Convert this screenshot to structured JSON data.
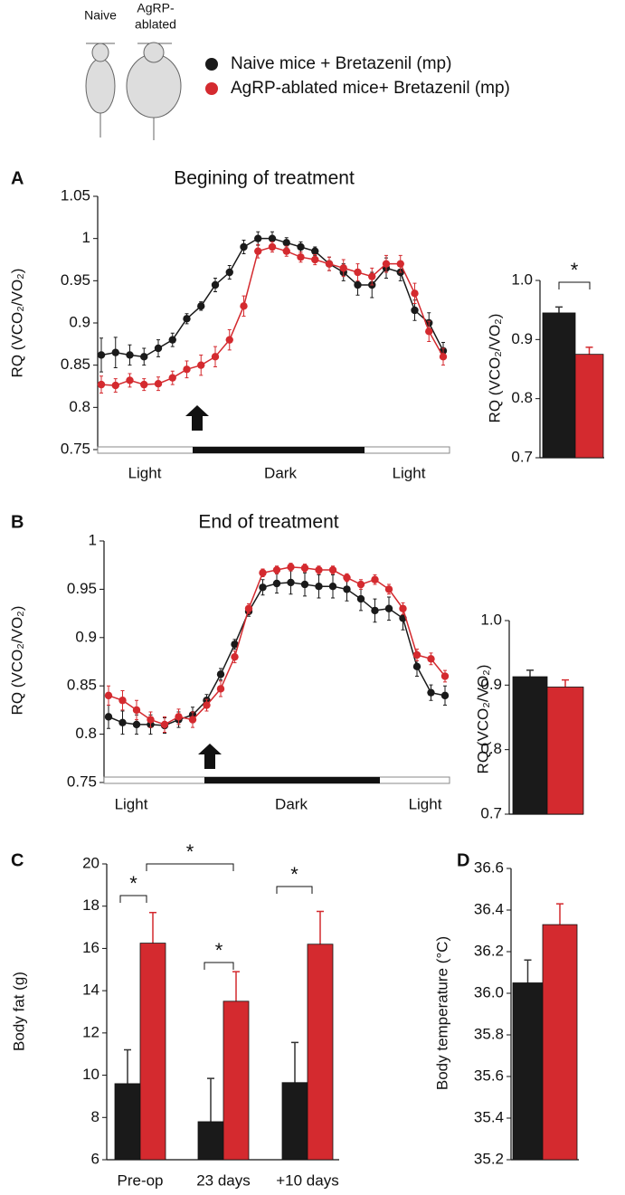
{
  "header": {
    "naive_label": "Naive",
    "ablated_label": [
      "AgRP-",
      "ablated"
    ]
  },
  "chart_data": [
    {
      "type": "line",
      "panel": "A",
      "title": "Begining of treatment",
      "y_label": "RQ (VCO₂/VO₂)",
      "phase_labels": [
        "Light",
        "Dark",
        "Light"
      ],
      "ylim": [
        0.75,
        1.05
      ],
      "yticks": [
        0.75,
        0.8,
        0.85,
        0.9,
        0.95,
        1,
        1.05
      ],
      "series": [
        {
          "name": "Naive mice + Bretazenil (mp)",
          "color": "#1a1a1a",
          "values": [
            0.862,
            0.865,
            0.862,
            0.86,
            0.87,
            0.88,
            0.905,
            0.92,
            0.945,
            0.96,
            0.99,
            1.0,
            1.0,
            0.995,
            0.99,
            0.985,
            0.97,
            0.96,
            0.945,
            0.945,
            0.965,
            0.96,
            0.915,
            0.9,
            0.867
          ],
          "errors": [
            0.02,
            0.018,
            0.012,
            0.01,
            0.01,
            0.008,
            0.006,
            0.005,
            0.008,
            0.008,
            0.008,
            0.008,
            0.008,
            0.006,
            0.006,
            0.005,
            0.008,
            0.01,
            0.012,
            0.015,
            0.012,
            0.01,
            0.012,
            0.012,
            0.01
          ]
        },
        {
          "name": "AgRP-ablated mice+ Bretazenil (mp)",
          "color": "#d42a2f",
          "values": [
            0.827,
            0.826,
            0.832,
            0.827,
            0.828,
            0.835,
            0.845,
            0.85,
            0.86,
            0.88,
            0.92,
            0.985,
            0.99,
            0.985,
            0.978,
            0.975,
            0.97,
            0.965,
            0.96,
            0.955,
            0.97,
            0.97,
            0.935,
            0.89,
            0.86
          ],
          "errors": [
            0.01,
            0.008,
            0.008,
            0.007,
            0.008,
            0.008,
            0.01,
            0.012,
            0.012,
            0.012,
            0.012,
            0.008,
            0.006,
            0.006,
            0.006,
            0.006,
            0.008,
            0.01,
            0.01,
            0.01,
            0.01,
            0.01,
            0.012,
            0.012,
            0.01
          ]
        }
      ]
    },
    {
      "type": "bar",
      "y_label": "RQ (VCO₂/VO₂)",
      "ylim": [
        0.7,
        1.0
      ],
      "yticks": [
        0.7,
        0.8,
        0.9,
        {
          "value": 1,
          "label": "1.0"
        }
      ],
      "annotations": [
        "*"
      ],
      "series": [
        {
          "color": "#1a1a1a",
          "values": [
            0.945
          ],
          "errors": [
            0.01
          ]
        },
        {
          "color": "#d42a2f",
          "values": [
            0.875
          ],
          "errors": [
            0.012
          ]
        }
      ]
    },
    {
      "type": "line",
      "panel": "B",
      "title": "End of treatment",
      "y_label": "RQ (VCO₂/VO₂)",
      "phase_labels": [
        "Light",
        "Dark",
        "Light"
      ],
      "ylim": [
        0.75,
        1
      ],
      "yticks": [
        0.75,
        0.8,
        0.85,
        0.9,
        0.95,
        1
      ],
      "series": [
        {
          "color": "#1a1a1a",
          "values": [
            0.818,
            0.812,
            0.81,
            0.81,
            0.809,
            0.815,
            0.82,
            0.835,
            0.862,
            0.893,
            0.927,
            0.952,
            0.956,
            0.957,
            0.955,
            0.953,
            0.953,
            0.95,
            0.94,
            0.928,
            0.93,
            0.92,
            0.87,
            0.843,
            0.84
          ],
          "errors": [
            0.012,
            0.012,
            0.01,
            0.01,
            0.008,
            0.008,
            0.008,
            0.006,
            0.006,
            0.005,
            0.005,
            0.008,
            0.01,
            0.012,
            0.012,
            0.012,
            0.012,
            0.012,
            0.012,
            0.012,
            0.012,
            0.012,
            0.01,
            0.008,
            0.01
          ]
        },
        {
          "color": "#d42a2f",
          "values": [
            0.84,
            0.835,
            0.825,
            0.815,
            0.81,
            0.818,
            0.815,
            0.83,
            0.847,
            0.88,
            0.93,
            0.967,
            0.97,
            0.973,
            0.972,
            0.97,
            0.97,
            0.962,
            0.955,
            0.96,
            0.95,
            0.93,
            0.882,
            0.878,
            0.86
          ],
          "errors": [
            0.01,
            0.01,
            0.01,
            0.008,
            0.008,
            0.008,
            0.008,
            0.006,
            0.008,
            0.006,
            0.005,
            0.004,
            0.004,
            0.004,
            0.004,
            0.004,
            0.004,
            0.004,
            0.005,
            0.005,
            0.005,
            0.006,
            0.006,
            0.006,
            0.006
          ]
        }
      ]
    },
    {
      "type": "bar",
      "y_label": "RQ (VCO₂/VO₂)",
      "ylim": [
        0.7,
        1.0
      ],
      "yticks": [
        0.7,
        0.8,
        0.9,
        {
          "value": 1,
          "label": "1.0"
        }
      ],
      "series": [
        {
          "color": "#1a1a1a",
          "values": [
            0.913
          ],
          "errors": [
            0.01
          ]
        },
        {
          "color": "#d42a2f",
          "values": [
            0.897
          ],
          "errors": [
            0.011
          ]
        }
      ]
    },
    {
      "type": "bar",
      "panel": "C",
      "y_label": "Body fat (g)",
      "categories": [
        "Pre-op",
        "23 days",
        "+10 days"
      ],
      "ylim": [
        6,
        20
      ],
      "yticks": [
        6,
        8,
        10,
        12,
        14,
        16,
        18,
        20
      ],
      "annotations": [
        "*",
        "*",
        "*",
        "*"
      ],
      "series": [
        {
          "color": "#1a1a1a",
          "values": [
            9.6,
            7.8,
            9.65
          ],
          "errors": [
            1.6,
            2.05,
            1.9
          ]
        },
        {
          "color": "#d42a2f",
          "values": [
            16.25,
            13.5,
            16.2
          ],
          "errors": [
            1.45,
            1.4,
            1.55
          ]
        }
      ]
    },
    {
      "type": "bar",
      "panel": "D",
      "y_label": "Body temperature (°C)",
      "ylim": [
        35.2,
        36.6
      ],
      "yticks": [
        35.2,
        35.4,
        35.6,
        35.8,
        {
          "value": 36,
          "label": "36.0"
        },
        36.2,
        36.4,
        36.6
      ],
      "series": [
        {
          "color": "#1a1a1a",
          "values": [
            36.05
          ],
          "errors": [
            0.11
          ]
        },
        {
          "color": "#d42a2f",
          "values": [
            36.33
          ],
          "errors": [
            0.1
          ]
        }
      ]
    }
  ]
}
